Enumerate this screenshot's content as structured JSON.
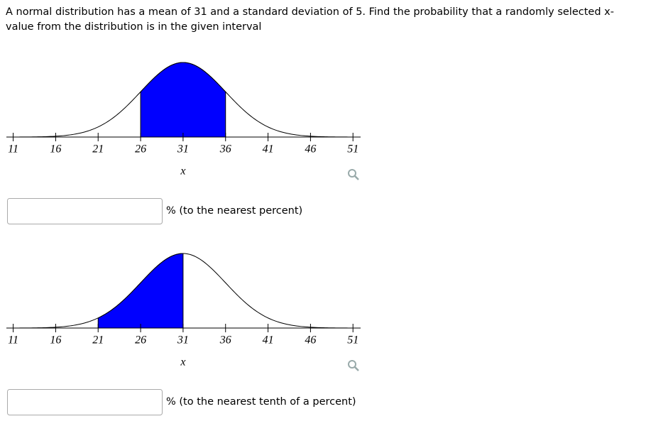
{
  "question": "A normal distribution has a mean of 31 and a standard deviation of 5. Find the probability that a randomly selected x-value from the distribution is in the given interval",
  "chart_data": [
    {
      "type": "normal-curve",
      "mean": 31,
      "sd": 5,
      "shade": [
        26,
        36
      ],
      "color": "#0000ff",
      "xlim": [
        10.2,
        51.9
      ],
      "xticks": [
        11,
        16,
        21,
        26,
        31,
        36,
        41,
        46,
        51
      ],
      "xlabel": "x"
    },
    {
      "type": "normal-curve",
      "mean": 31,
      "sd": 5,
      "shade": [
        21,
        31
      ],
      "color": "#0000ff",
      "xlim": [
        10.2,
        51.9
      ],
      "xticks": [
        11,
        16,
        21,
        26,
        31,
        36,
        41,
        46,
        51
      ],
      "xlabel": "x"
    }
  ],
  "answers": [
    {
      "suffix": "% (to the nearest percent)"
    },
    {
      "suffix": "% (to the nearest tenth of a percent)"
    }
  ]
}
